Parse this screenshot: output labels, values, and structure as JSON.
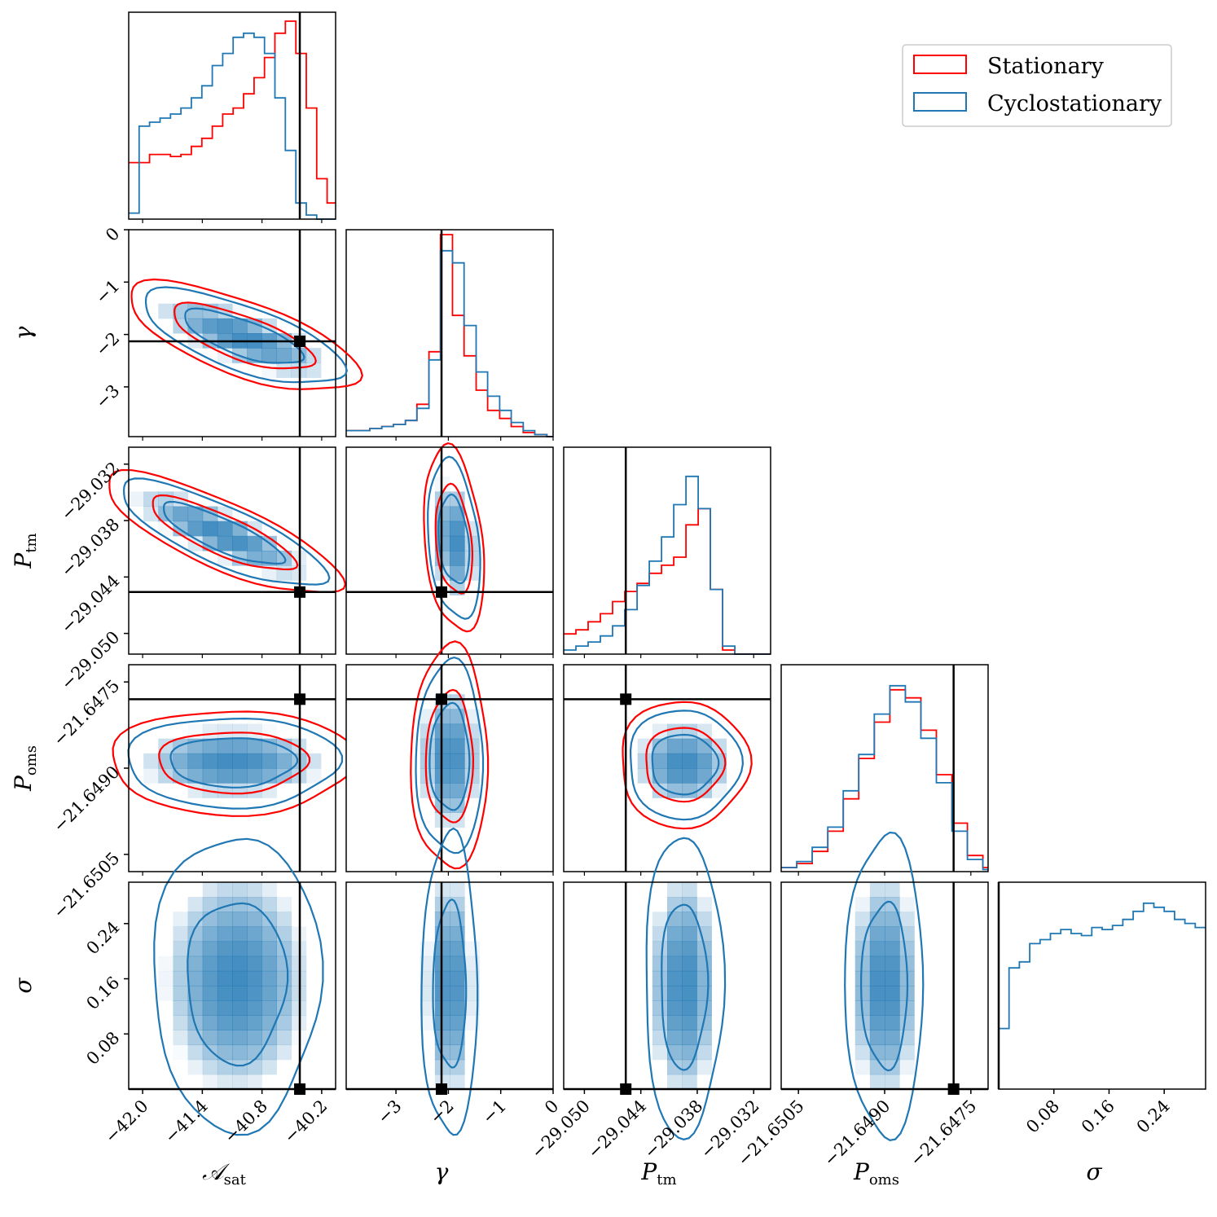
{
  "chart_data": {
    "type": "corner",
    "params": [
      {
        "key": "A_sat",
        "label_main": "𝒜",
        "label_sub": "sat",
        "range": [
          -42.14,
          -40.06
        ],
        "ticks": [
          -42.0,
          -41.4,
          -40.8,
          -40.2
        ],
        "tick_labels": [
          "−42.0",
          "−41.4",
          "−40.8",
          "−40.2"
        ],
        "truth": -40.42
      },
      {
        "key": "gamma",
        "label_main": "γ",
        "label_sub": "",
        "range": [
          -3.95,
          0.0
        ],
        "ticks": [
          -3,
          -2,
          -1,
          0
        ],
        "tick_labels": [
          "−3",
          "−2",
          "−1",
          "0"
        ],
        "truth": -2.13
      },
      {
        "key": "P_tm",
        "label_main": "P",
        "label_sub": "tm",
        "range": [
          -29.0522,
          -29.0302
        ],
        "ticks": [
          -29.05,
          -29.044,
          -29.038,
          -29.032
        ],
        "tick_labels": [
          "−29.050",
          "−29.044",
          "−29.038",
          "−29.032"
        ],
        "truth": -29.0456
      },
      {
        "key": "P_oms",
        "label_main": "P",
        "label_sub": "oms",
        "range": [
          -21.6508,
          -21.6472
        ],
        "ticks": [
          -21.6505,
          -21.649,
          -21.6475
        ],
        "tick_labels": [
          "−21.6505",
          "−21.6490",
          "−21.6475"
        ],
        "truth": -21.6478
      },
      {
        "key": "sigma",
        "label_main": "σ",
        "label_sub": "",
        "range": [
          0.0,
          0.3
        ],
        "ticks": [
          0.08,
          0.16,
          0.24
        ],
        "tick_labels": [
          "0.08",
          "0.16",
          "0.24"
        ],
        "truth": 0.0
      }
    ],
    "series": [
      {
        "name": "Stationary",
        "color": "#ff0000"
      },
      {
        "name": "Cyclostationary",
        "color": "#1f77b4"
      }
    ],
    "legend_position": "top-right",
    "marginals": {
      "A_sat": {
        "bin_edges": [
          -42.14,
          -42.035,
          -41.93,
          -41.825,
          -41.72,
          -41.615,
          -41.51,
          -41.405,
          -41.3,
          -41.195,
          -41.09,
          -40.985,
          -40.88,
          -40.775,
          -40.67,
          -40.565,
          -40.46,
          -40.355,
          -40.25,
          -40.145,
          -40.06
        ],
        "Stationary": [
          0.28,
          0.28,
          0.32,
          0.32,
          0.31,
          0.32,
          0.36,
          0.4,
          0.46,
          0.52,
          0.55,
          0.62,
          0.7,
          0.8,
          0.92,
          0.98,
          0.82,
          0.55,
          0.2,
          0.08
        ],
        "Cyclostationary": [
          0.03,
          0.46,
          0.48,
          0.5,
          0.52,
          0.55,
          0.6,
          0.66,
          0.76,
          0.82,
          0.9,
          0.92,
          0.9,
          0.82,
          0.6,
          0.34,
          0.08,
          0.02,
          0.0,
          0.0
        ]
      },
      "gamma": {
        "bin_edges": [
          -3.95,
          -3.72,
          -3.5,
          -3.27,
          -3.05,
          -2.82,
          -2.6,
          -2.37,
          -2.15,
          -1.92,
          -1.7,
          -1.47,
          -1.25,
          -1.02,
          -0.8,
          -0.57,
          -0.35,
          -0.12,
          0.0
        ],
        "Stationary": [
          0.03,
          0.03,
          0.04,
          0.05,
          0.06,
          0.08,
          0.16,
          0.42,
          1.0,
          0.6,
          0.4,
          0.23,
          0.13,
          0.09,
          0.05,
          0.02,
          0.01,
          0.0
        ],
        "Cyclostationary": [
          0.03,
          0.03,
          0.04,
          0.05,
          0.06,
          0.08,
          0.14,
          0.38,
          0.92,
          0.86,
          0.55,
          0.32,
          0.2,
          0.13,
          0.07,
          0.03,
          0.01,
          0.0
        ]
      },
      "P_tm": {
        "bin_edges": [
          -29.0522,
          -29.0509,
          -29.0496,
          -29.0483,
          -29.047,
          -29.0457,
          -29.0444,
          -29.0431,
          -29.0418,
          -29.0405,
          -29.0392,
          -29.0379,
          -29.0366,
          -29.0353,
          -29.034,
          -29.0327,
          -29.0314,
          -29.0302
        ],
        "Stationary": [
          0.1,
          0.12,
          0.16,
          0.2,
          0.26,
          0.31,
          0.35,
          0.4,
          0.44,
          0.48,
          0.64,
          0.72,
          0.32,
          0.02,
          0.0,
          0.0,
          0.0
        ],
        "Cyclostationary": [
          0.02,
          0.04,
          0.06,
          0.09,
          0.14,
          0.22,
          0.34,
          0.46,
          0.58,
          0.74,
          0.88,
          0.72,
          0.32,
          0.04,
          0.0,
          0.0,
          0.0
        ]
      },
      "P_oms": {
        "bin_edges": [
          -21.6508,
          -21.65053,
          -21.65026,
          -21.64999,
          -21.64972,
          -21.64945,
          -21.64918,
          -21.64891,
          -21.64864,
          -21.64837,
          -21.6481,
          -21.64783,
          -21.64756,
          -21.64729,
          -21.6472
        ],
        "Stationary": [
          0.02,
          0.04,
          0.1,
          0.2,
          0.36,
          0.56,
          0.74,
          0.9,
          0.86,
          0.7,
          0.48,
          0.24,
          0.08,
          0.02
        ],
        "Cyclostationary": [
          0.02,
          0.05,
          0.12,
          0.22,
          0.4,
          0.58,
          0.78,
          0.92,
          0.84,
          0.66,
          0.44,
          0.2,
          0.06,
          0.01
        ]
      },
      "sigma": {
        "bin_edges": [
          0.0,
          0.015,
          0.03,
          0.045,
          0.06,
          0.075,
          0.09,
          0.105,
          0.12,
          0.135,
          0.15,
          0.165,
          0.18,
          0.195,
          0.21,
          0.225,
          0.24,
          0.255,
          0.27,
          0.285,
          0.3
        ],
        "Cyclostationary": [
          0.3,
          0.6,
          0.63,
          0.72,
          0.74,
          0.77,
          0.79,
          0.77,
          0.76,
          0.8,
          0.79,
          0.81,
          0.84,
          0.88,
          0.92,
          0.9,
          0.88,
          0.84,
          0.82,
          0.8
        ]
      }
    }
  }
}
